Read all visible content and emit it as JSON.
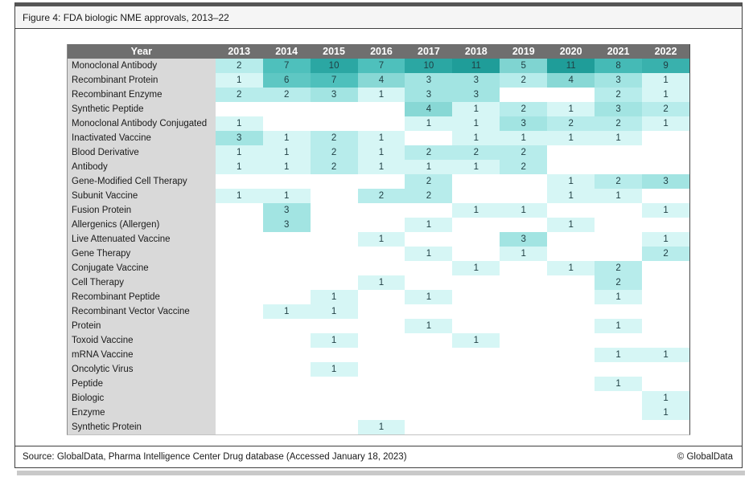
{
  "title": "Figure 4: FDA biologic NME approvals, 2013–22",
  "footer": {
    "source": "Source: GlobalData, Pharma Intelligence Center Drug database (Accessed January 18, 2023)",
    "copyright": "© GlobalData"
  },
  "colors": {
    "header_bg": "#6f6f6f",
    "header_text": "#ffffff",
    "label_column_bg": "#d9d9d9",
    "cell_text": "#203f44",
    "empty_cell": "#ffffff",
    "value_colors": {
      "1": "#d6f6f5",
      "2": "#b7eceb",
      "3": "#a2e4e2",
      "4": "#88d8d5",
      "5": "#7fd4d1",
      "6": "#5ec7c3",
      "7": "#4ec0bc",
      "8": "#45bab6",
      "9": "#39b1ad",
      "10": "#2ba7a3",
      "11": "#1f9d99"
    }
  },
  "chart_data": {
    "type": "heatmap",
    "title": "Figure 4: FDA biologic NME approvals, 2013–22",
    "corner_header": "Year",
    "categories": [
      "2013",
      "2014",
      "2015",
      "2016",
      "2017",
      "2018",
      "2019",
      "2020",
      "2021",
      "2022"
    ],
    "value_range": [
      1,
      11
    ],
    "legend": "none",
    "rows": [
      {
        "label": "Monoclonal Antibody",
        "values": [
          2,
          7,
          10,
          7,
          10,
          11,
          5,
          11,
          8,
          9
        ]
      },
      {
        "label": "Recombinant Protein",
        "values": [
          1,
          6,
          7,
          4,
          3,
          3,
          2,
          4,
          3,
          1
        ]
      },
      {
        "label": "Recombinant Enzyme",
        "values": [
          2,
          2,
          3,
          1,
          3,
          3,
          null,
          null,
          2,
          1
        ]
      },
      {
        "label": "Synthetic Peptide",
        "values": [
          null,
          null,
          null,
          null,
          4,
          1,
          2,
          1,
          3,
          2
        ]
      },
      {
        "label": "Monoclonal Antibody Conjugated",
        "values": [
          1,
          null,
          null,
          null,
          1,
          1,
          3,
          2,
          2,
          1
        ]
      },
      {
        "label": "Inactivated Vaccine",
        "values": [
          3,
          1,
          2,
          1,
          null,
          1,
          1,
          1,
          1,
          null
        ]
      },
      {
        "label": "Blood Derivative",
        "values": [
          1,
          1,
          2,
          1,
          2,
          2,
          2,
          null,
          null,
          null
        ]
      },
      {
        "label": "Antibody",
        "values": [
          1,
          1,
          2,
          1,
          1,
          1,
          2,
          null,
          null,
          null
        ]
      },
      {
        "label": "Gene-Modified Cell Therapy",
        "values": [
          null,
          null,
          null,
          null,
          2,
          null,
          null,
          1,
          2,
          3
        ]
      },
      {
        "label": "Subunit Vaccine",
        "values": [
          1,
          1,
          null,
          2,
          2,
          null,
          null,
          1,
          1,
          null
        ]
      },
      {
        "label": "Fusion Protein",
        "values": [
          null,
          3,
          null,
          null,
          null,
          1,
          1,
          null,
          null,
          1
        ]
      },
      {
        "label": "Allergenics (Allergen)",
        "values": [
          null,
          3,
          null,
          null,
          1,
          null,
          null,
          1,
          null,
          null
        ]
      },
      {
        "label": "Live Attenuated Vaccine",
        "values": [
          null,
          null,
          null,
          1,
          null,
          null,
          3,
          null,
          null,
          1
        ]
      },
      {
        "label": "Gene Therapy",
        "values": [
          null,
          null,
          null,
          null,
          1,
          null,
          1,
          null,
          null,
          2
        ]
      },
      {
        "label": "Conjugate Vaccine",
        "values": [
          null,
          null,
          null,
          null,
          null,
          1,
          null,
          1,
          2,
          null
        ]
      },
      {
        "label": "Cell Therapy",
        "values": [
          null,
          null,
          null,
          1,
          null,
          null,
          null,
          null,
          2,
          null
        ]
      },
      {
        "label": "Recombinant Peptide",
        "values": [
          null,
          null,
          1,
          null,
          1,
          null,
          null,
          null,
          1,
          null
        ]
      },
      {
        "label": "Recombinant Vector Vaccine",
        "values": [
          null,
          1,
          1,
          null,
          null,
          null,
          null,
          null,
          null,
          null
        ]
      },
      {
        "label": "Protein",
        "values": [
          null,
          null,
          null,
          null,
          1,
          null,
          null,
          null,
          1,
          null
        ]
      },
      {
        "label": "Toxoid Vaccine",
        "values": [
          null,
          null,
          1,
          null,
          null,
          1,
          null,
          null,
          null,
          null
        ]
      },
      {
        "label": "mRNA Vaccine",
        "values": [
          null,
          null,
          null,
          null,
          null,
          null,
          null,
          null,
          1,
          1
        ]
      },
      {
        "label": "Oncolytic Virus",
        "values": [
          null,
          null,
          1,
          null,
          null,
          null,
          null,
          null,
          null,
          null
        ]
      },
      {
        "label": "Peptide",
        "values": [
          null,
          null,
          null,
          null,
          null,
          null,
          null,
          null,
          1,
          null
        ]
      },
      {
        "label": "Biologic",
        "values": [
          null,
          null,
          null,
          null,
          null,
          null,
          null,
          null,
          null,
          1
        ]
      },
      {
        "label": "Enzyme",
        "values": [
          null,
          null,
          null,
          null,
          null,
          null,
          null,
          null,
          null,
          1
        ]
      },
      {
        "label": "Synthetic Protein",
        "values": [
          null,
          null,
          null,
          1,
          null,
          null,
          null,
          null,
          null,
          null
        ]
      }
    ]
  }
}
